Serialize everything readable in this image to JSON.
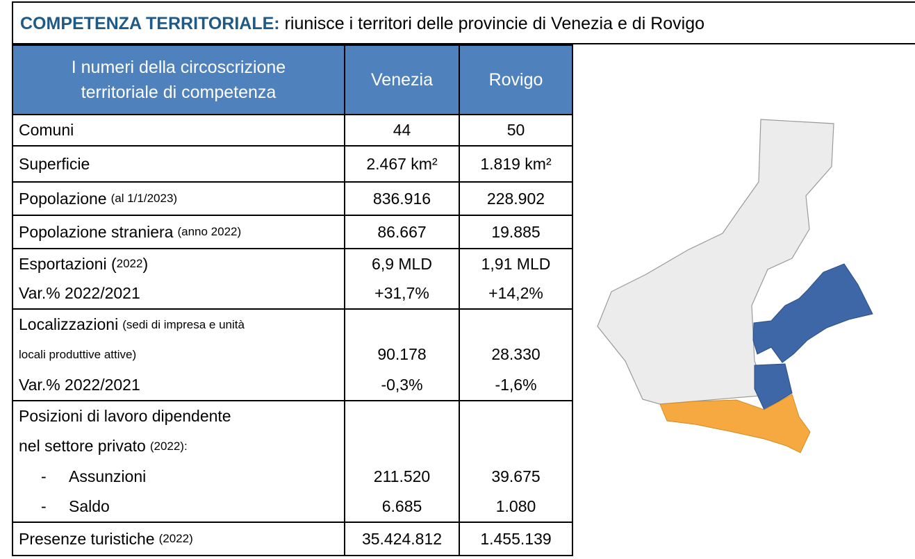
{
  "header": {
    "title_bold": "COMPETENZA TERRITORIALE:",
    "title": "riunisce i territori delle provincie di Venezia e di Rovigo"
  },
  "table": {
    "columns": [
      [
        "I numeri della circoscrizione",
        "territoriale di competenza"
      ],
      [
        "Venezia"
      ],
      [
        "Rovigo"
      ]
    ],
    "rows": [
      {
        "lines": [
          {
            "label": "Comuni",
            "values": [
              "44",
              "50"
            ]
          }
        ]
      },
      {
        "lines": [
          {
            "label": "Superficie",
            "values": [
              "2.467 km²",
              "1.819 km²"
            ]
          }
        ]
      },
      {
        "lines": [
          {
            "label": "Popolazione",
            "note": "(al 1/1/2023)",
            "values": [
              "836.916",
              "228.902"
            ]
          }
        ]
      },
      {
        "lines": [
          {
            "label": "Popolazione straniera",
            "note": "(anno  2022)",
            "values": [
              "86.667",
              "19.885"
            ]
          }
        ]
      },
      {
        "lines": [
          {
            "label": "Esportazioni (",
            "note": "2022",
            "tail": ")",
            "values": [
              "6,9 MLD",
              "1,91 MLD"
            ]
          },
          {
            "label": "Var.% 2022/2021",
            "values": [
              "+31,7%",
              "+14,2%"
            ]
          }
        ]
      },
      {
        "lines": [
          {
            "label": "Localizzazioni",
            "note": "(sedi di impresa e unità"
          },
          {
            "note": "locali produttive attive)",
            "values": [
              "90.178",
              "28.330"
            ]
          },
          {
            "label": "Var.% 2022/2021",
            "values": [
              "-0,3%",
              "-1,6%"
            ]
          }
        ]
      },
      {
        "lines": [
          {
            "label": "Posizioni di lavoro dipendente"
          },
          {
            "label": "nel settore privato",
            "note": "(2022):"
          },
          {
            "bullet": "-",
            "label": "Assunzioni",
            "values": [
              "211.520",
              "39.675"
            ]
          },
          {
            "bullet": "-",
            "label": "Saldo",
            "values": [
              "6.685",
              "1.080"
            ]
          }
        ]
      },
      {
        "lines": [
          {
            "label": "Presenze turistiche",
            "note": "(2022)",
            "values": [
              "35.424.812",
              "1.455.139"
            ]
          }
        ]
      }
    ]
  }
}
